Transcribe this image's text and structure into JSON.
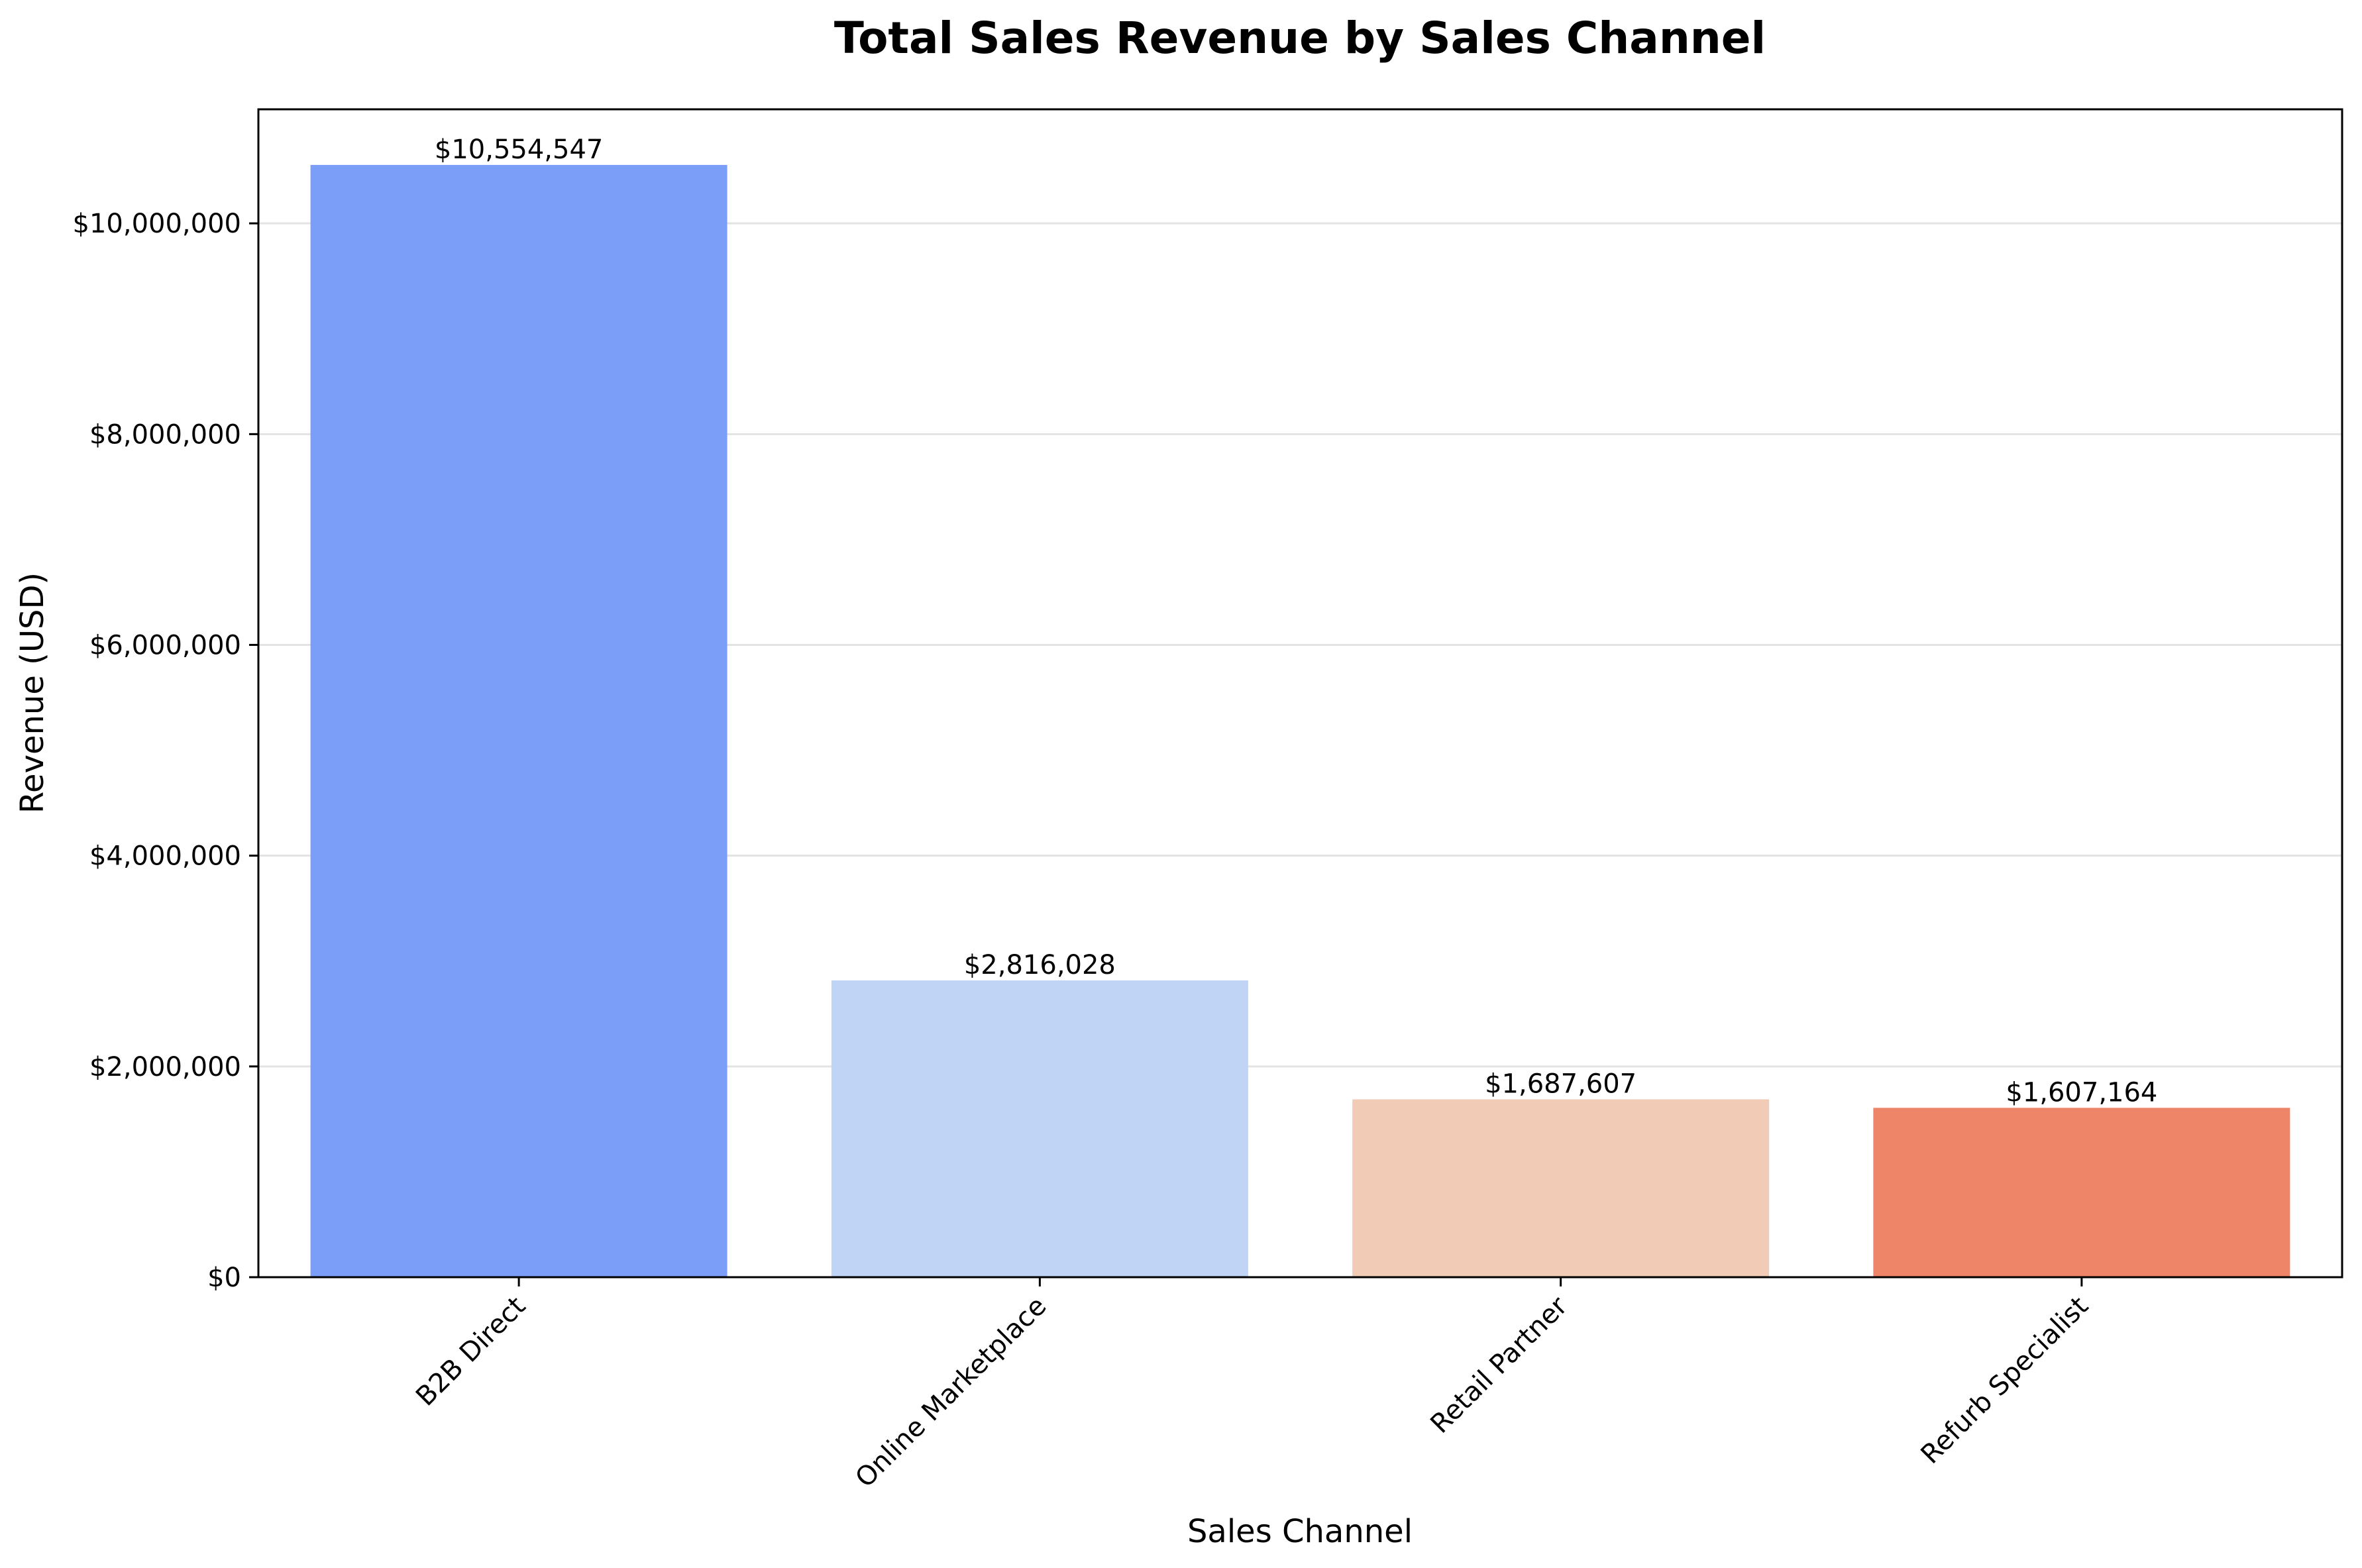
{
  "chart_data": {
    "type": "bar",
    "title": "Total Sales Revenue by Sales Channel",
    "xlabel": "Sales Channel",
    "ylabel": "Revenue (USD)",
    "categories": [
      "B2B Direct",
      "Online Marketplace",
      "Retail Partner",
      "Refurb Specialist"
    ],
    "values": [
      10554547,
      2816028,
      1687607,
      1607164
    ],
    "value_labels": [
      "$10,554,547",
      "$2,816,028",
      "$1,687,607",
      "$1,607,164"
    ],
    "colors": [
      "#7b9ef8",
      "#c0d4f5",
      "#f2cbb7",
      "#ee8468"
    ],
    "ylim": [
      0,
      11082274
    ],
    "yticks": [
      0,
      2000000,
      4000000,
      6000000,
      8000000,
      10000000
    ],
    "ytick_labels": [
      "$0",
      "$2,000,000",
      "$4,000,000",
      "$6,000,000",
      "$8,000,000",
      "$10,000,000"
    ],
    "grid": "y",
    "legend": "none"
  }
}
